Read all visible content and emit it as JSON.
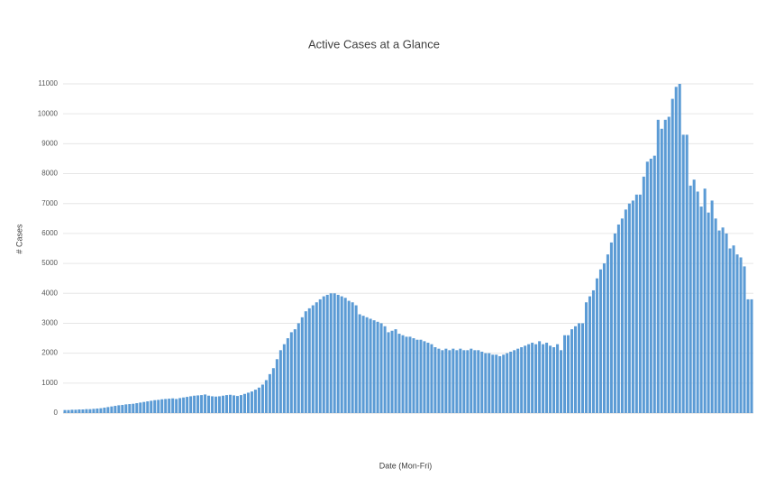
{
  "chart_data": {
    "type": "bar",
    "title": "Active Cases at a Glance",
    "y_label": "# Cases",
    "x_label": "Date (Mon-Fri)",
    "color": "#5b9bd5",
    "grid": true,
    "ylim": [
      0,
      11000
    ],
    "yticks": [
      0,
      1000,
      2000,
      3000,
      4000,
      5000,
      6000,
      7000,
      8000,
      9000,
      10000,
      11000
    ],
    "categories": [
      null,
      null,
      null,
      null,
      null,
      null,
      null,
      null,
      null,
      null,
      null,
      null,
      null,
      null,
      null,
      null,
      null,
      null,
      null,
      null,
      null,
      null,
      null,
      null,
      null,
      null,
      null,
      null,
      null,
      null,
      null,
      null,
      null,
      null,
      null,
      null,
      null,
      null,
      null,
      null,
      null,
      null,
      null,
      null,
      null,
      null,
      null,
      null,
      null,
      null,
      null,
      null,
      null,
      null,
      null,
      null,
      null,
      null,
      null,
      null,
      null,
      null,
      null,
      null,
      null,
      null,
      null,
      null,
      null,
      null,
      null,
      null,
      null,
      null,
      null,
      null,
      null,
      null,
      null,
      null,
      null,
      null,
      null,
      null,
      null,
      null,
      null,
      null,
      null,
      null,
      null,
      null,
      null,
      null,
      null,
      null,
      null,
      null,
      null,
      null,
      null,
      null,
      null,
      null,
      null,
      null,
      null,
      null,
      null,
      null,
      null,
      null,
      null,
      null,
      null,
      null,
      null,
      null,
      null,
      null,
      null,
      null,
      null,
      null,
      null,
      null,
      null,
      null,
      null,
      null,
      null,
      null,
      null,
      null,
      null,
      null,
      null,
      null,
      null,
      null,
      null,
      null,
      null,
      null,
      null,
      null,
      null,
      null,
      null,
      null,
      null,
      null,
      null,
      null,
      null,
      null,
      null,
      null,
      null,
      null,
      null,
      null,
      null,
      null,
      null,
      null,
      null,
      null,
      null,
      null,
      null,
      null,
      null,
      null,
      null,
      null,
      null,
      null,
      null,
      null,
      null,
      null,
      null,
      null,
      null,
      null,
      null,
      null,
      null,
      null,
      null,
      null
    ],
    "values": [
      100,
      100,
      110,
      110,
      120,
      120,
      130,
      130,
      140,
      150,
      160,
      180,
      200,
      220,
      240,
      260,
      270,
      290,
      300,
      310,
      330,
      350,
      370,
      390,
      410,
      430,
      440,
      460,
      470,
      480,
      490,
      470,
      500,
      520,
      540,
      560,
      580,
      590,
      600,
      620,
      580,
      560,
      550,
      560,
      580,
      600,
      610,
      590,
      570,
      600,
      640,
      680,
      720,
      780,
      850,
      950,
      1100,
      1300,
      1500,
      1800,
      2100,
      2300,
      2500,
      2700,
      2800,
      3000,
      3200,
      3400,
      3500,
      3600,
      3700,
      3800,
      3900,
      3950,
      4000,
      4000,
      3950,
      3900,
      3850,
      3750,
      3700,
      3600,
      3300,
      3250,
      3200,
      3150,
      3100,
      3050,
      3000,
      2900,
      2700,
      2750,
      2800,
      2650,
      2600,
      2550,
      2550,
      2500,
      2450,
      2450,
      2400,
      2350,
      2300,
      2200,
      2150,
      2100,
      2150,
      2100,
      2150,
      2100,
      2150,
      2100,
      2100,
      2150,
      2100,
      2100,
      2050,
      2000,
      2000,
      1950,
      1950,
      1900,
      1950,
      2000,
      2050,
      2100,
      2150,
      2200,
      2250,
      2300,
      2350,
      2300,
      2400,
      2300,
      2350,
      2250,
      2200,
      2300,
      2100,
      2600,
      2600,
      2800,
      2900,
      3000,
      3000,
      3700,
      3900,
      4100,
      4500,
      4800,
      5000,
      5300,
      5700,
      6000,
      6300,
      6500,
      6800,
      7000,
      7100,
      7300,
      7300,
      7900,
      8400,
      8500,
      8600,
      9800,
      9500,
      9800,
      9900,
      10500,
      10900,
      11000,
      9300,
      9300,
      7600,
      7800,
      7400,
      6900,
      7500,
      6700,
      7100,
      6500,
      6100,
      6200,
      6000,
      5500,
      5600,
      5300,
      5200,
      4900,
      3800,
      3800
    ]
  }
}
